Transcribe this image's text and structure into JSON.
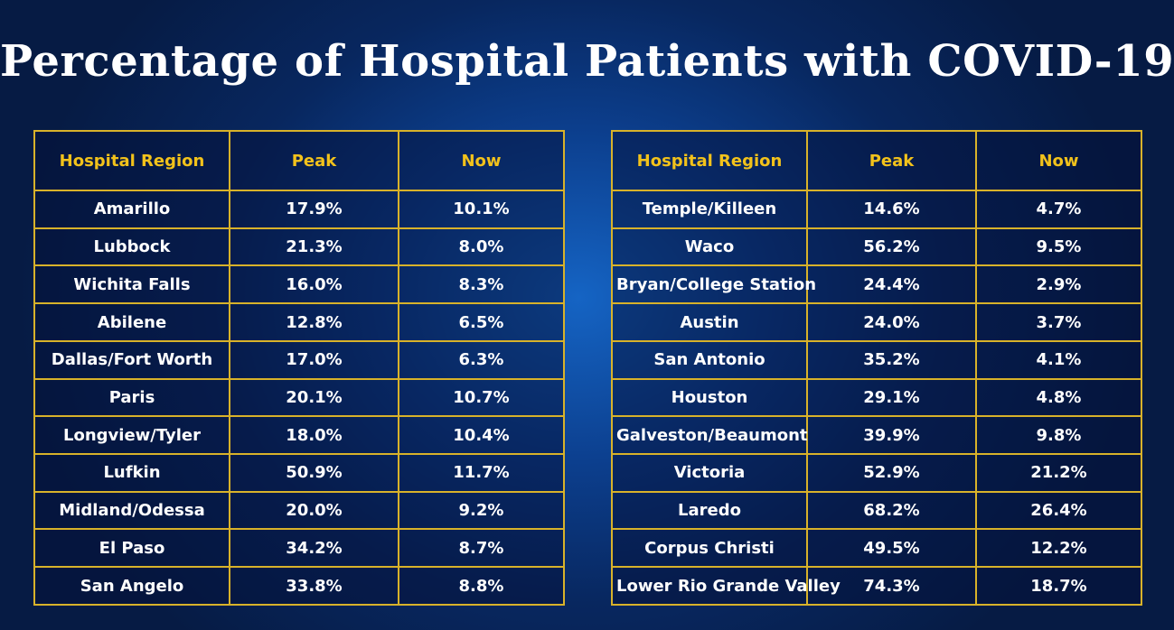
{
  "title": "Percentage of Hospital Patients with COVID-19",
  "headers": {
    "region": "Hospital Region",
    "peak": "Peak",
    "now": "Now"
  },
  "left_table": [
    {
      "region": "Amarillo",
      "peak": "17.9%",
      "now": "10.1%"
    },
    {
      "region": "Lubbock",
      "peak": "21.3%",
      "now": "8.0%"
    },
    {
      "region": "Wichita Falls",
      "peak": "16.0%",
      "now": "8.3%"
    },
    {
      "region": "Abilene",
      "peak": "12.8%",
      "now": "6.5%"
    },
    {
      "region": "Dallas/Fort Worth",
      "peak": "17.0%",
      "now": "6.3%"
    },
    {
      "region": "Paris",
      "peak": "20.1%",
      "now": "10.7%"
    },
    {
      "region": "Longview/Tyler",
      "peak": "18.0%",
      "now": "10.4%"
    },
    {
      "region": "Lufkin",
      "peak": "50.9%",
      "now": "11.7%"
    },
    {
      "region": "Midland/Odessa",
      "peak": "20.0%",
      "now": "9.2%"
    },
    {
      "region": "El Paso",
      "peak": "34.2%",
      "now": "8.7%"
    },
    {
      "region": "San Angelo",
      "peak": "33.8%",
      "now": "8.8%"
    }
  ],
  "right_table": [
    {
      "region": "Temple/Killeen",
      "peak": "14.6%",
      "now": "4.7%"
    },
    {
      "region": "Waco",
      "peak": "56.2%",
      "now": "9.5%"
    },
    {
      "region": "Bryan/College Station",
      "peak": "24.4%",
      "now": "2.9%"
    },
    {
      "region": "Austin",
      "peak": "24.0%",
      "now": "3.7%"
    },
    {
      "region": "San Antonio",
      "peak": "35.2%",
      "now": "4.1%"
    },
    {
      "region": "Houston",
      "peak": "29.1%",
      "now": "4.8%"
    },
    {
      "region": "Galveston/Beaumont",
      "peak": "39.9%",
      "now": "9.8%"
    },
    {
      "region": "Victoria",
      "peak": "52.9%",
      "now": "21.2%"
    },
    {
      "region": "Laredo",
      "peak": "68.2%",
      "now": "26.4%"
    },
    {
      "region": "Corpus Christi",
      "peak": "49.5%",
      "now": "12.2%"
    },
    {
      "region": "Lower Rio Grande Valley",
      "peak": "74.3%",
      "now": "18.7%"
    }
  ],
  "colors": {
    "background": "#0a3a85",
    "title": "#ffffff",
    "header_text": "#f2c21b",
    "border": "#d8b22a",
    "cell_text": "#ffffff"
  }
}
